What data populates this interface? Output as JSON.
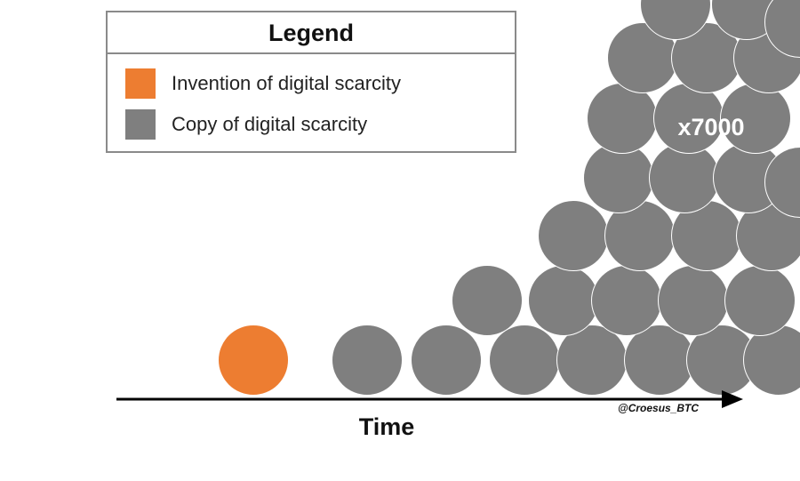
{
  "legend": {
    "title": "Legend",
    "items": [
      {
        "label": "Invention of digital scarcity",
        "color": "#ED7D31"
      },
      {
        "label": "Copy of digital scarcity",
        "color": "#7F7F7F"
      }
    ]
  },
  "axis": {
    "label": "Time"
  },
  "annotation": {
    "multiplier": "x7000",
    "handle": "@Croesus_BTC"
  }
}
